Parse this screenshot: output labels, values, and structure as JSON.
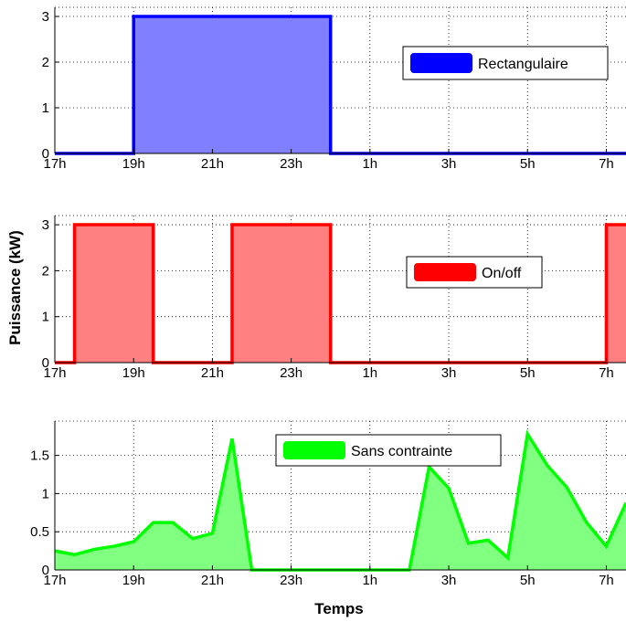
{
  "figure": {
    "ylabel": "Puissance (kW)",
    "xlabel": "Temps"
  },
  "chart_data": [
    {
      "type": "area",
      "x_unit": "hour of day",
      "xlim": [
        17,
        31.5
      ],
      "xtick_values": [
        17,
        19,
        21,
        23,
        25,
        27,
        29,
        31
      ],
      "xtick_labels": [
        "17h",
        "19h",
        "21h",
        "23h",
        "1h",
        "3h",
        "5h",
        "7h"
      ],
      "ylim": [
        0,
        3.2
      ],
      "ytick_values": [
        0,
        1,
        2,
        3
      ],
      "ytick_labels": [
        "0",
        "1",
        "2",
        "3"
      ],
      "grid": true,
      "legend_position": "right",
      "series": [
        {
          "name": "Rectangulaire",
          "color": "#0000ff",
          "fill": "#7f7fff",
          "x": [
            17,
            19,
            19,
            24,
            24,
            31.5
          ],
          "y": [
            0,
            0,
            3,
            3,
            0,
            0
          ]
        }
      ]
    },
    {
      "type": "area",
      "x_unit": "hour of day",
      "xlim": [
        17,
        31.5
      ],
      "xtick_values": [
        17,
        19,
        21,
        23,
        25,
        27,
        29,
        31
      ],
      "xtick_labels": [
        "17h",
        "19h",
        "21h",
        "23h",
        "1h",
        "3h",
        "5h",
        "7h"
      ],
      "ylim": [
        0,
        3.2
      ],
      "ytick_values": [
        0,
        1,
        2,
        3
      ],
      "ytick_labels": [
        "0",
        "1",
        "2",
        "3"
      ],
      "grid": true,
      "legend_position": "right",
      "series": [
        {
          "name": "On/off",
          "color": "#ff0000",
          "fill": "#ff8080",
          "x": [
            17,
            17.5,
            17.5,
            19.5,
            19.5,
            21.5,
            21.5,
            24,
            24,
            31,
            31,
            31.5
          ],
          "y": [
            0,
            0,
            3,
            3,
            0,
            0,
            3,
            3,
            0,
            0,
            3,
            3
          ]
        }
      ]
    },
    {
      "type": "area",
      "x_unit": "hour of day",
      "xlim": [
        17,
        31.5
      ],
      "xtick_values": [
        17,
        19,
        21,
        23,
        25,
        27,
        29,
        31
      ],
      "xtick_labels": [
        "17h",
        "19h",
        "21h",
        "23h",
        "1h",
        "3h",
        "5h",
        "7h"
      ],
      "ylim": [
        0,
        1.95
      ],
      "ytick_values": [
        0,
        0.5,
        1,
        1.5
      ],
      "ytick_labels": [
        "0",
        "0.5",
        "1",
        "1.5"
      ],
      "grid": true,
      "legend_position": "top-right",
      "series": [
        {
          "name": "Sans contrainte",
          "color": "#00ff00",
          "fill": "#80ff80",
          "x": [
            17,
            17.5,
            18,
            18.5,
            19,
            19.5,
            20,
            20.5,
            21,
            21.5,
            22,
            22.5,
            23,
            23.5,
            24,
            24.5,
            25,
            25.5,
            26,
            26.5,
            27,
            27.5,
            28,
            28.5,
            29,
            29.5,
            30,
            30.5,
            31,
            31.5
          ],
          "y": [
            0.25,
            0.2,
            0.27,
            0.31,
            0.37,
            0.62,
            0.62,
            0.41,
            0.48,
            1.72,
            0,
            0,
            0,
            0,
            0,
            0,
            0,
            0,
            0,
            1.35,
            1.07,
            0.35,
            0.39,
            0.16,
            1.78,
            1.37,
            1.08,
            0.62,
            0.31,
            0.88
          ]
        }
      ]
    }
  ]
}
